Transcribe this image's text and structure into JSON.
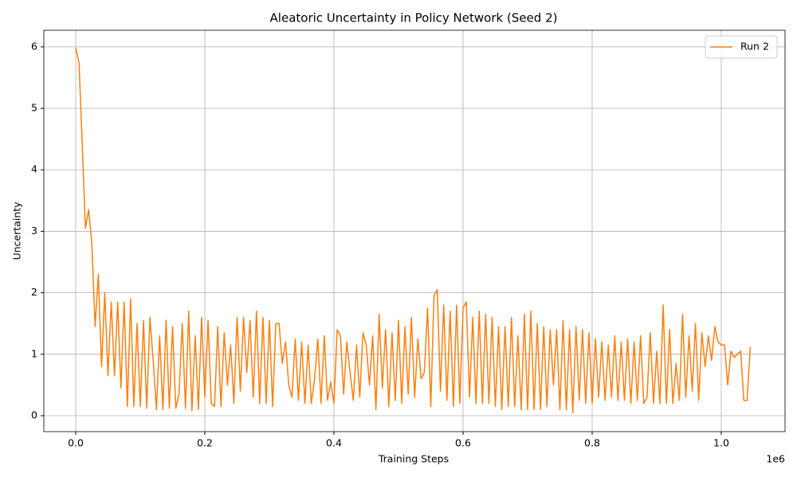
{
  "chart_data": {
    "type": "line",
    "title": "Aleatoric Uncertainty in Policy Network (Seed 2)",
    "x_label": "Training Steps",
    "y_label": "Uncertainty",
    "x_offset_label": "1e6",
    "x": [
      0.0,
      0.005,
      0.01,
      0.015,
      0.02,
      0.025,
      0.03,
      0.035,
      0.04,
      0.045,
      0.05,
      0.055,
      0.06,
      0.065,
      0.07,
      0.075,
      0.08,
      0.085,
      0.09,
      0.095,
      0.1,
      0.105,
      0.11,
      0.115,
      0.12,
      0.125,
      0.13,
      0.135,
      0.14,
      0.145,
      0.15,
      0.155,
      0.16,
      0.165,
      0.17,
      0.175,
      0.18,
      0.185,
      0.19,
      0.195,
      0.2,
      0.205,
      0.21,
      0.215,
      0.22,
      0.225,
      0.23,
      0.235,
      0.24,
      0.245,
      0.25,
      0.255,
      0.26,
      0.265,
      0.27,
      0.275,
      0.28,
      0.285,
      0.29,
      0.295,
      0.3,
      0.305,
      0.31,
      0.315,
      0.32,
      0.325,
      0.33,
      0.335,
      0.34,
      0.345,
      0.35,
      0.355,
      0.36,
      0.365,
      0.37,
      0.375,
      0.38,
      0.385,
      0.39,
      0.395,
      0.4,
      0.405,
      0.41,
      0.415,
      0.42,
      0.425,
      0.43,
      0.435,
      0.44,
      0.445,
      0.45,
      0.455,
      0.46,
      0.465,
      0.47,
      0.475,
      0.48,
      0.485,
      0.49,
      0.495,
      0.5,
      0.505,
      0.51,
      0.515,
      0.52,
      0.525,
      0.53,
      0.535,
      0.54,
      0.545,
      0.55,
      0.555,
      0.56,
      0.565,
      0.57,
      0.575,
      0.58,
      0.585,
      0.59,
      0.595,
      0.6,
      0.605,
      0.61,
      0.615,
      0.62,
      0.625,
      0.63,
      0.635,
      0.64,
      0.645,
      0.65,
      0.655,
      0.66,
      0.665,
      0.67,
      0.675,
      0.68,
      0.685,
      0.69,
      0.695,
      0.7,
      0.705,
      0.71,
      0.715,
      0.72,
      0.725,
      0.73,
      0.735,
      0.74,
      0.745,
      0.75,
      0.755,
      0.76,
      0.765,
      0.77,
      0.775,
      0.78,
      0.785,
      0.79,
      0.795,
      0.8,
      0.805,
      0.81,
      0.815,
      0.82,
      0.825,
      0.83,
      0.835,
      0.84,
      0.845,
      0.85,
      0.855,
      0.86,
      0.865,
      0.87,
      0.875,
      0.88,
      0.885,
      0.89,
      0.895,
      0.9,
      0.905,
      0.91,
      0.915,
      0.92,
      0.925,
      0.93,
      0.935,
      0.94,
      0.945,
      0.95,
      0.955,
      0.96,
      0.965,
      0.97,
      0.975,
      0.98,
      0.985,
      0.99,
      0.995,
      1.0,
      1.005,
      1.01,
      1.015,
      1.02,
      1.025,
      1.03,
      1.035,
      1.04,
      1.045
    ],
    "series": [
      {
        "name": "Run 2",
        "color": "#ff7f0e",
        "values": [
          5.98,
          5.75,
          4.45,
          3.05,
          3.35,
          2.8,
          1.45,
          2.3,
          0.8,
          2.0,
          0.65,
          1.85,
          0.65,
          1.85,
          0.45,
          1.85,
          0.15,
          1.9,
          0.15,
          1.5,
          0.15,
          1.55,
          0.12,
          1.6,
          0.9,
          0.1,
          1.3,
          0.1,
          1.55,
          0.12,
          1.45,
          0.12,
          0.35,
          1.5,
          0.12,
          1.7,
          0.08,
          1.3,
          0.1,
          1.6,
          0.3,
          1.55,
          0.2,
          0.15,
          1.45,
          0.15,
          1.35,
          0.5,
          1.15,
          0.2,
          1.6,
          0.4,
          1.6,
          0.7,
          1.55,
          0.3,
          1.7,
          0.2,
          1.6,
          0.2,
          1.55,
          0.15,
          1.5,
          1.5,
          0.85,
          1.2,
          0.5,
          0.3,
          1.25,
          0.25,
          1.2,
          0.2,
          1.15,
          0.2,
          0.6,
          1.25,
          0.2,
          1.3,
          0.25,
          0.55,
          0.2,
          1.4,
          1.3,
          0.35,
          1.2,
          0.7,
          0.25,
          1.15,
          0.3,
          1.35,
          1.15,
          0.5,
          1.3,
          0.1,
          1.65,
          0.45,
          1.4,
          0.15,
          1.35,
          0.25,
          1.55,
          0.2,
          1.45,
          0.35,
          1.6,
          0.3,
          1.25,
          0.6,
          0.7,
          1.75,
          0.15,
          1.95,
          2.05,
          0.4,
          1.8,
          0.25,
          1.7,
          0.15,
          1.8,
          0.2,
          1.75,
          1.85,
          0.3,
          1.6,
          0.2,
          1.7,
          0.2,
          1.65,
          0.2,
          1.6,
          0.15,
          1.45,
          0.1,
          1.45,
          0.15,
          1.6,
          0.15,
          1.3,
          0.1,
          1.65,
          0.1,
          1.7,
          0.1,
          1.5,
          0.1,
          1.45,
          0.15,
          1.4,
          0.5,
          1.4,
          0.1,
          1.55,
          0.1,
          1.4,
          0.05,
          1.45,
          0.25,
          1.4,
          0.2,
          1.35,
          0.2,
          1.25,
          0.3,
          1.2,
          0.25,
          1.15,
          0.3,
          1.3,
          0.25,
          1.2,
          0.25,
          1.25,
          0.2,
          1.2,
          0.25,
          1.3,
          0.2,
          0.3,
          1.35,
          0.2,
          1.05,
          0.2,
          1.8,
          0.2,
          1.4,
          0.2,
          0.85,
          0.25,
          1.65,
          0.3,
          1.3,
          0.4,
          1.5,
          0.25,
          1.35,
          0.8,
          1.3,
          0.9,
          1.45,
          1.2,
          1.15,
          1.15,
          0.5,
          1.05,
          0.95,
          1.0,
          1.05,
          0.25,
          0.25,
          1.12
        ]
      }
    ],
    "xlim": [
      -0.0494,
      1.0988
    ],
    "ylim": [
      -0.259,
      6.27
    ],
    "xticks": [
      {
        "value": 0,
        "label": "0.0"
      },
      0.2,
      0.4,
      0.6,
      0.8,
      {
        "value": 1,
        "label": "1.0"
      }
    ],
    "yticks": [
      0,
      1,
      2,
      3,
      4,
      5,
      6
    ],
    "grid": true,
    "legend": "upper right"
  }
}
